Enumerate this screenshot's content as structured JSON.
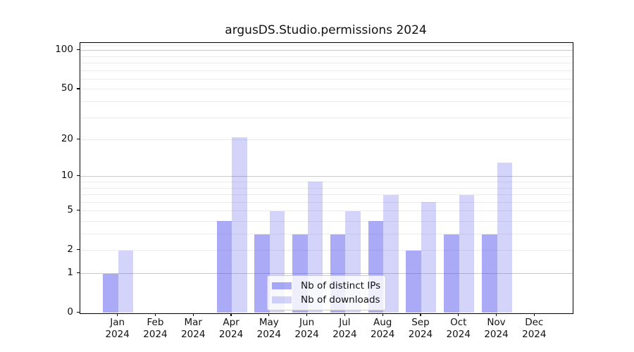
{
  "chart_data": {
    "type": "bar",
    "title": "argusDS.Studio.permissions 2024",
    "categories": [
      "Jan 2024",
      "Feb 2024",
      "Mar 2024",
      "Apr 2024",
      "May 2024",
      "Jun 2024",
      "Jul 2024",
      "Aug 2024",
      "Sep 2024",
      "Oct 2024",
      "Nov 2024",
      "Dec 2024"
    ],
    "series": [
      {
        "name": "Nb of distinct IPs",
        "color": "rgba(85,85,238,0.5)",
        "values": [
          1,
          0,
          0,
          4,
          3,
          3,
          3,
          4,
          2,
          3,
          3,
          0
        ]
      },
      {
        "name": "Nb of downloads",
        "color": "rgba(85,85,238,0.25)",
        "values": [
          2,
          0,
          0,
          21,
          5,
          9,
          5,
          7,
          6,
          7,
          13,
          0
        ]
      }
    ],
    "xlabel": "",
    "ylabel": "",
    "y_scale": "log10(1+y)",
    "y_ticks": [
      0,
      1,
      2,
      5,
      10,
      20,
      50,
      100
    ],
    "y_major_gridlines": [
      1,
      10,
      100
    ],
    "y_minor_ticks": [
      3,
      4,
      6,
      7,
      8,
      9,
      30,
      40,
      60,
      70,
      80,
      90,
      110
    ],
    "ylim": [
      0,
      115
    ],
    "grid": "horizontal",
    "legend_position": "lower center"
  }
}
